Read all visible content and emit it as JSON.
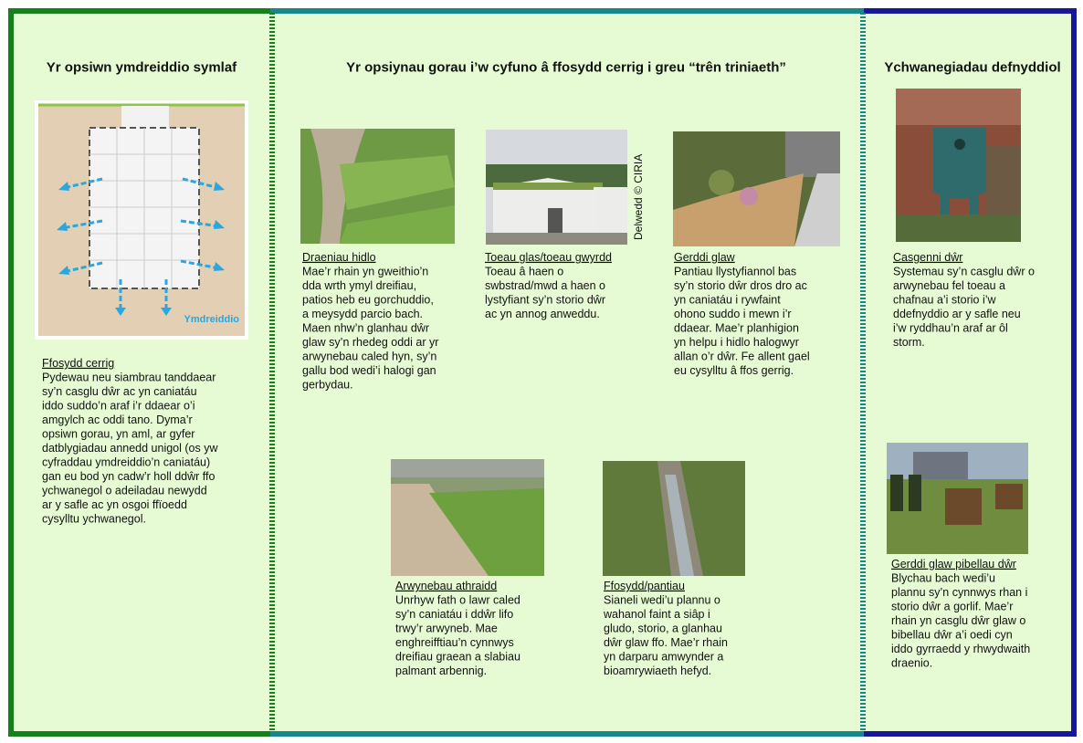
{
  "left": {
    "title": "Yr opsiwn ymdreiddio symlaf",
    "diagram_label": "Ymdreiddio",
    "item": {
      "heading": "Ffosydd cerrig",
      "lines": [
        "Pydewau neu siambrau tanddaear",
        "sy’n casglu dŵr ac yn caniatáu",
        "iddo suddo’n araf i’r ddaear o’i",
        "amgylch ac oddi tano. Dyma’r",
        "opsiwn gorau, yn aml, ar gyfer",
        "datblygiadau annedd unigol (os yw",
        "cyfraddau ymdreiddio’n caniatáu)",
        "gan eu bod yn cadw’r holl ddŵr ffo",
        "ychwanegol o adeiladau newydd",
        "ar y safle ac yn osgoi ffïoedd",
        "cysylltu ychwanegol."
      ]
    }
  },
  "middle": {
    "title": "Yr opsiynau gorau i’w cyfuno â ffosydd cerrig i greu “trên triniaeth”",
    "credit": "Delwedd © CIRIA",
    "items": [
      {
        "heading": "Draeniau hidlo",
        "lines": [
          "Mae’r rhain yn gweithio’n",
          "dda wrth ymyl dreifiau,",
          "patios heb eu gorchuddio,",
          "a meysydd parcio bach.",
          "Maen nhw’n glanhau dŵr",
          "glaw sy’n rhedeg oddi ar yr",
          "arwynebau caled hyn, sy’n",
          "gallu bod wedi’i halogi gan",
          "gerbydau."
        ]
      },
      {
        "heading": "Toeau glas/toeau gwyrdd",
        "lines": [
          "Toeau â haen o",
          "swbstrad/mwd a haen o",
          "lystyfiant sy’n storio dŵr",
          "ac yn annog anweddu."
        ]
      },
      {
        "heading": "Gerddi glaw",
        "lines": [
          "Pantiau llystyfiannol bas",
          "sy’n storio dŵr dros dro ac",
          "yn caniatáu i rywfaint",
          "ohono suddo i mewn i’r",
          "ddaear. Mae’r planhigion",
          "yn helpu i hidlo halogwyr",
          "allan o’r dŵr. Fe allent gael",
          "eu cysylltu â ffos gerrig."
        ]
      },
      {
        "heading": "Arwynebau athraidd",
        "lines": [
          "Unrhyw fath o lawr caled",
          "sy’n caniatáu i ddŵr lifo",
          "trwy’r arwyneb. Mae",
          "enghreifftiau’n cynnwys",
          "dreifiau graean a slabiau",
          "palmant arbennig."
        ]
      },
      {
        "heading": "Ffosydd/pantiau",
        "lines": [
          "Sianeli wedi’u plannu o",
          "wahanol faint a siâp i",
          "gludo, storio, a glanhau",
          "dŵr glaw ffo. Mae’r rhain",
          "yn darparu amwynder a",
          "bioamrywiaeth hefyd."
        ]
      }
    ]
  },
  "right": {
    "title": "Ychwanegiadau defnyddiol",
    "items": [
      {
        "heading": "Casgenni dŵr",
        "lines": [
          "Systemau sy’n casglu dŵr o",
          "arwynebau fel toeau a",
          "chafnau a’i storio i’w",
          "ddefnyddio ar y safle neu",
          "i’w ryddhau’n araf ar ôl",
          "storm."
        ]
      },
      {
        "heading": "Gerddi glaw pibellau dŵr",
        "lines": [
          "Blychau bach wedi’u",
          "plannu sy’n cynnwys rhan i",
          "storio dŵr a gorlif. Mae’r",
          "rhain yn casglu dŵr glaw o",
          "bibellau dŵr a’i oedi cyn",
          "iddo gyrraedd y rhwydwaith",
          "draenio."
        ]
      }
    ]
  }
}
